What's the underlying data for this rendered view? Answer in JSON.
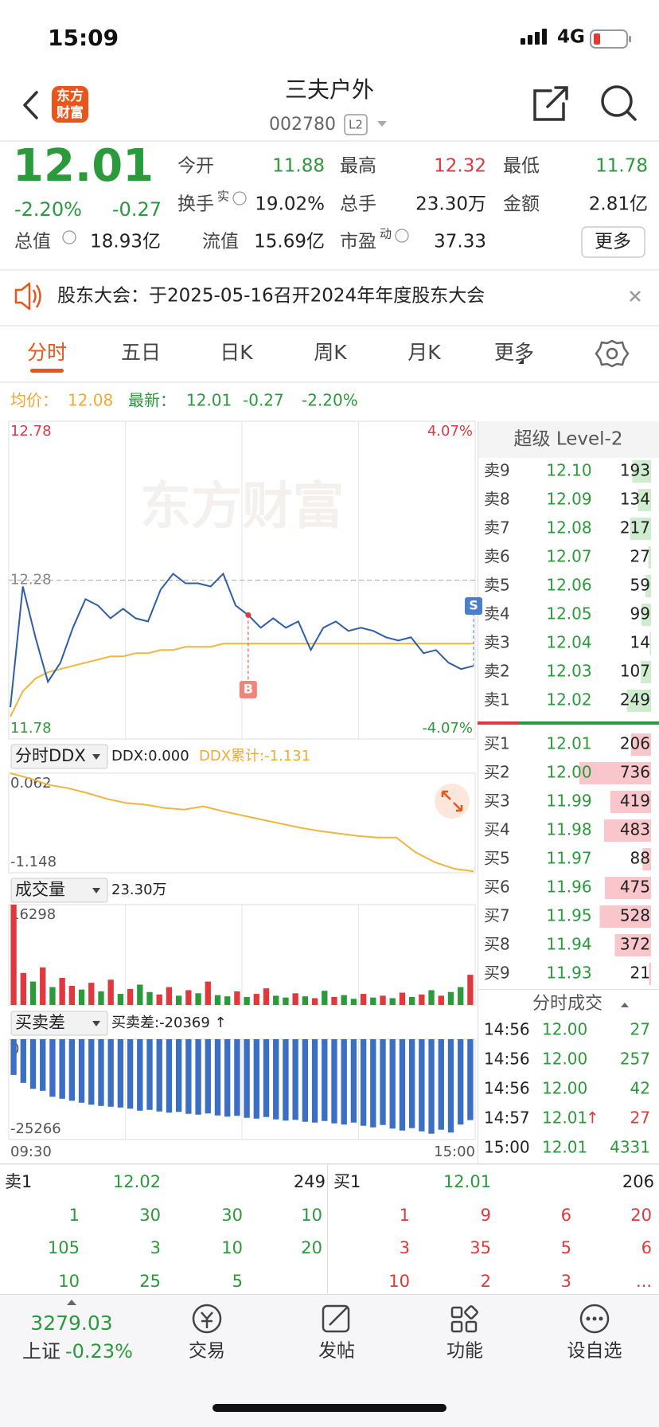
{
  "status_bar": {
    "time": "15:09",
    "network": "4G"
  },
  "header": {
    "logo": [
      "东方",
      "财富"
    ],
    "title": "三夫户外",
    "code": "002780",
    "badge": "L2"
  },
  "quote": {
    "price": "12.01",
    "change_pct": "-2.20%",
    "change": "-0.27",
    "fields": [
      {
        "label": "今开",
        "value": "11.88",
        "color": "#2a9a3a"
      },
      {
        "label": "最高",
        "value": "12.32",
        "color": "#e0383c"
      },
      {
        "label": "最低",
        "value": "11.78",
        "color": "#2a9a3a"
      },
      {
        "label": "换手",
        "sup": "实",
        "value": "19.02%",
        "color": "#222222"
      },
      {
        "label": "总手",
        "value": "23.30万",
        "color": "#222222"
      },
      {
        "label": "金额",
        "value": "2.81亿",
        "color": "#222222"
      },
      {
        "label": "流值",
        "value": "15.69亿",
        "color": "#222222"
      },
      {
        "label": "市盈",
        "sup": "动",
        "value": "37.33",
        "color": "#222222"
      }
    ],
    "total": {
      "label": "总值",
      "value": "18.93亿"
    },
    "more": "更多"
  },
  "notice": "股东大会：于2025-05-16召开2024年年度股东大会",
  "tabs": {
    "items": [
      "分时",
      "五日",
      "日K",
      "周K",
      "月K",
      "更多"
    ],
    "active": 0
  },
  "summary": {
    "avg_label": "均价：",
    "avg": "12.08",
    "last_label": "最新：",
    "last": "12.01",
    "change": "-0.27",
    "change_pct": "-2.20%"
  },
  "chart_data": [
    {
      "type": "line",
      "watermark": "东方财富",
      "markers": [
        "B",
        "S"
      ],
      "ylim": [
        11.78,
        12.78
      ],
      "yticks": [
        11.78,
        12.28,
        12.78
      ],
      "y2lim": [
        -4.07,
        4.07
      ],
      "y2ticks": [
        {
          "value": -4.07,
          "label": "-4.07%"
        },
        {
          "value": 4.07,
          "label": "4.07%"
        }
      ],
      "series": [
        {
          "color": "#2e5ea6",
          "values": [
            11.88,
            12.26,
            12.1,
            11.96,
            12.02,
            12.13,
            12.22,
            12.2,
            12.16,
            12.19,
            12.16,
            12.15,
            12.25,
            12.3,
            12.27,
            12.27,
            12.26,
            12.3,
            12.2,
            12.17,
            12.13,
            12.16,
            12.13,
            12.15,
            12.06,
            12.13,
            12.15,
            12.12,
            12.13,
            12.12,
            12.1,
            12.09,
            12.1,
            12.05,
            12.06,
            12.02,
            12.0,
            12.01
          ]
        },
        {
          "color": "#f0b53c",
          "values": [
            11.85,
            11.93,
            11.97,
            11.99,
            12.0,
            12.01,
            12.02,
            12.03,
            12.04,
            12.04,
            12.05,
            12.05,
            12.06,
            12.06,
            12.07,
            12.07,
            12.07,
            12.08,
            12.08,
            12.08,
            12.08,
            12.08,
            12.08,
            12.08,
            12.08,
            12.08,
            12.08,
            12.08,
            12.08,
            12.08,
            12.08,
            12.08,
            12.08,
            12.08,
            12.08,
            12.08,
            12.08,
            12.08
          ]
        }
      ]
    },
    {
      "type": "line",
      "title": "分时DDX",
      "label": "DDX:0.000",
      "cumulative": "DDX累计:-1.131",
      "ylim": [
        -1.148,
        0.062
      ],
      "yticks": [
        -1.148,
        0.062
      ],
      "color": "#f0b53c",
      "values": [
        0.062,
        0.0,
        -0.08,
        -0.12,
        -0.18,
        -0.25,
        -0.3,
        -0.32,
        -0.36,
        -0.38,
        -0.34,
        -0.4,
        -0.45,
        -0.5,
        -0.55,
        -0.6,
        -0.64,
        -0.67,
        -0.7,
        -0.72,
        -0.72,
        -0.9,
        -1.02,
        -1.1,
        -1.131
      ]
    },
    {
      "type": "bar",
      "title": "成交量",
      "total": "23.30万",
      "ylim": [
        0,
        16298
      ],
      "yticks": [
        16298
      ],
      "values": [
        16298,
        5200,
        3800,
        6100,
        2900,
        4400,
        3100,
        2500,
        3600,
        2200,
        4100,
        1800,
        2600,
        3300,
        2100,
        1700,
        2900,
        1500,
        2400,
        1900,
        3800,
        1600,
        1400,
        2200,
        1300,
        1800,
        2700,
        1500,
        1200,
        1900,
        1400,
        1100,
        2300,
        1300,
        1600,
        1000,
        1800,
        1200,
        1500,
        1100,
        2000,
        1300,
        1700,
        2400,
        1500,
        2100,
        2900,
        4900
      ],
      "colors": [
        "#e0383c",
        "#e0383c",
        "#2a9a3a",
        "#e0383c",
        "#2a9a3a",
        "#e0383c",
        "#e0383c",
        "#2a9a3a",
        "#e0383c",
        "#2a9a3a",
        "#e0383c",
        "#2a9a3a",
        "#e0383c",
        "#2a9a3a",
        "#2a9a3a",
        "#e0383c",
        "#e0383c",
        "#2a9a3a",
        "#e0383c",
        "#2a9a3a",
        "#e0383c",
        "#2a9a3a",
        "#2a9a3a",
        "#e0383c",
        "#2a9a3a",
        "#e0383c",
        "#e0383c",
        "#2a9a3a",
        "#2a9a3a",
        "#e0383c",
        "#2a9a3a",
        "#e0383c",
        "#2a9a3a",
        "#e0383c",
        "#2a9a3a",
        "#2a9a3a",
        "#e0383c",
        "#2a9a3a",
        "#e0383c",
        "#2a9a3a",
        "#e0383c",
        "#2a9a3a",
        "#e0383c",
        "#2a9a3a",
        "#e0383c",
        "#2a9a3a",
        "#2a9a3a",
        "#e0383c"
      ]
    },
    {
      "type": "bar",
      "title": "买卖差",
      "label": "买卖差:-20369 ↑",
      "ylim": [
        -25266,
        0
      ],
      "yticks": [
        -25266,
        0
      ],
      "color": "#3b6fc4",
      "values": [
        -9000,
        -11000,
        -12500,
        -13000,
        -14500,
        -15000,
        -15500,
        -16000,
        -16500,
        -16800,
        -17000,
        -17200,
        -17500,
        -18000,
        -17800,
        -18200,
        -18500,
        -18300,
        -18800,
        -19000,
        -18700,
        -19200,
        -19500,
        -19300,
        -19800,
        -20000,
        -19600,
        -20200,
        -20500,
        -20300,
        -20800,
        -21000,
        -20600,
        -21200,
        -21500,
        -21000,
        -21800,
        -22200,
        -21600,
        -22500,
        -23000,
        -22400,
        -23200,
        -23800,
        -22800,
        -23500,
        -21500,
        -20369
      ]
    }
  ],
  "time_axis": [
    "09:30",
    "15:00"
  ],
  "level2": {
    "title": "超级 Level-2",
    "asks": [
      {
        "label": "卖9",
        "price": "12.10",
        "volume": 193
      },
      {
        "label": "卖8",
        "price": "12.09",
        "volume": 134
      },
      {
        "label": "卖7",
        "price": "12.08",
        "volume": 217
      },
      {
        "label": "卖6",
        "price": "12.07",
        "volume": 27
      },
      {
        "label": "卖5",
        "price": "12.06",
        "volume": 59
      },
      {
        "label": "卖4",
        "price": "12.05",
        "volume": 99
      },
      {
        "label": "卖3",
        "price": "12.04",
        "volume": 14
      },
      {
        "label": "卖2",
        "price": "12.03",
        "volume": 107
      },
      {
        "label": "卖1",
        "price": "12.02",
        "volume": 249
      }
    ],
    "bids": [
      {
        "label": "买1",
        "price": "12.01",
        "volume": 206
      },
      {
        "label": "买2",
        "price": "12.00",
        "volume": 736
      },
      {
        "label": "买3",
        "price": "11.99",
        "volume": 419
      },
      {
        "label": "买4",
        "price": "11.98",
        "volume": 483
      },
      {
        "label": "买5",
        "price": "11.97",
        "volume": 88
      },
      {
        "label": "买6",
        "price": "11.96",
        "volume": 475
      },
      {
        "label": "买7",
        "price": "11.95",
        "volume": 528
      },
      {
        "label": "买8",
        "price": "11.94",
        "volume": 372
      },
      {
        "label": "买9",
        "price": "11.93",
        "volume": 21
      }
    ]
  },
  "trades": {
    "title": "分时成交",
    "rows": [
      {
        "time": "14:56",
        "price": "12.00",
        "volume": 27,
        "color": "#2a9a3a"
      },
      {
        "time": "14:56",
        "price": "12.00",
        "volume": 257,
        "color": "#2a9a3a"
      },
      {
        "time": "14:56",
        "price": "12.00",
        "volume": 42,
        "color": "#2a9a3a"
      },
      {
        "time": "14:57",
        "price": "12.01",
        "flag": "↑",
        "volume": 27,
        "color": "#e0383c"
      },
      {
        "time": "15:00",
        "price": "12.01",
        "volume": 4331,
        "color": "#2a9a3a"
      }
    ]
  },
  "queue": {
    "ask": {
      "label": "卖1",
      "price": "12.02",
      "volume": 249,
      "orders": [
        1,
        30,
        30,
        10,
        105,
        3,
        10,
        20,
        10,
        25,
        5
      ]
    },
    "bid": {
      "label": "买1",
      "price": "12.01",
      "volume": 206,
      "orders": [
        1,
        9,
        6,
        20,
        3,
        35,
        5,
        6,
        10,
        2,
        3
      ],
      "more": "..."
    }
  },
  "bottom_bar": {
    "index_value": "3279.03",
    "index_name": "上证",
    "index_change": "-0.23%",
    "items": [
      "交易",
      "发帖",
      "功能",
      "设自选"
    ]
  }
}
